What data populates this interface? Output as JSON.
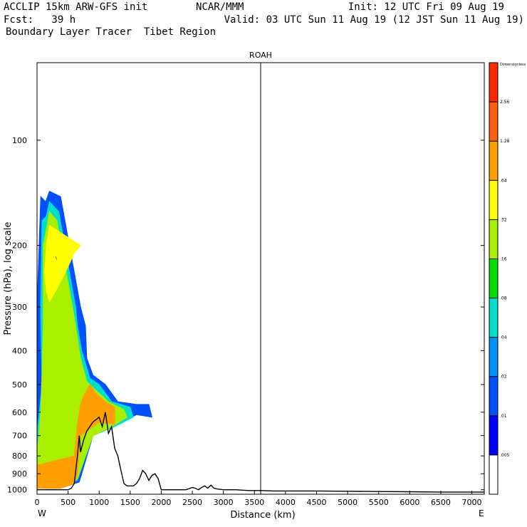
{
  "header": {
    "model": "ACCLIP 15km ARW-GFS init",
    "org": "NCAR/MMM",
    "init": "Init: 12 UTC Fri 09 Aug 19",
    "fcst": "Fcst:   39 h",
    "valid": "Valid: 03 UTC Sun 11 Aug 19 (12 JST Sun 11 Aug 19)",
    "product": "Boundary Layer Tracer  Tibet Region"
  },
  "chart_data": {
    "type": "heatmap",
    "title": "ROAH",
    "xlabel": "Distance (km)",
    "ylabel": "Pressure (hPa), log scale",
    "xlim": [
      0,
      7200
    ],
    "ylim": [
      1030,
      60
    ],
    "y_scale": "log",
    "x_ticks": [
      0,
      500,
      1000,
      1500,
      2000,
      2500,
      3000,
      3500,
      4000,
      4500,
      5000,
      5500,
      6000,
      6500,
      7000
    ],
    "x_tick_labels": [
      "0",
      "500",
      "1000",
      "1500",
      "2000",
      "2500",
      "3000",
      "3500",
      "4000",
      "4500",
      "5000",
      "5500",
      "6000",
      "6500",
      "7000"
    ],
    "y_ticks": [
      100,
      200,
      300,
      400,
      500,
      600,
      700,
      800,
      900,
      1000
    ],
    "y_tick_labels": [
      "100",
      "200",
      "300",
      "400",
      "500",
      "600",
      "700",
      "800",
      "900",
      "1000"
    ],
    "left_end_label": "W",
    "right_end_label": "E",
    "vertical_line_x": 3600,
    "colorbar": {
      "top_label": "Dimensionless",
      "levels": [
        ".005",
        ".01",
        ".02",
        ".04",
        ".08",
        ".16",
        ".32",
        ".64",
        "1.28",
        "2.56"
      ],
      "colors": [
        "#ffffff",
        "#0000ff",
        "#0050ff",
        "#0090ff",
        "#00e0c8",
        "#00dd00",
        "#aaee00",
        "#ffff00",
        "#ffa000",
        "#ff6010",
        "#ff2800"
      ]
    },
    "terrain_profile": {
      "x": [
        0,
        50,
        100,
        150,
        200,
        250,
        300,
        350,
        400,
        450,
        500,
        550,
        600,
        650,
        680,
        700,
        750,
        800,
        850,
        900,
        950,
        1000,
        1050,
        1100,
        1150,
        1200,
        1250,
        1300,
        1350,
        1400,
        1450,
        1500,
        1550,
        1600,
        1650,
        1700,
        1750,
        1800,
        1850,
        1900,
        1950,
        2000,
        2100,
        2200,
        2300,
        2400,
        2500,
        2550,
        2600,
        2650,
        2700,
        2750,
        2800,
        2850,
        2900,
        3000,
        3200,
        3400,
        3600,
        3800,
        4000,
        4500,
        5000,
        5500,
        6000,
        6500,
        7000,
        7200
      ],
      "p": [
        1000,
        1000,
        1000,
        1000,
        1000,
        1000,
        1000,
        1000,
        1000,
        1000,
        1000,
        990,
        960,
        800,
        700,
        780,
        720,
        680,
        660,
        640,
        630,
        620,
        660,
        600,
        690,
        660,
        760,
        800,
        880,
        960,
        975,
        975,
        975,
        960,
        930,
        880,
        900,
        940,
        910,
        900,
        930,
        1000,
        1000,
        1000,
        1000,
        1000,
        985,
        990,
        1000,
        985,
        975,
        990,
        970,
        990,
        995,
        1000,
        1000,
        1005,
        1005,
        1008,
        1008,
        1008,
        1010,
        1012,
        1013,
        1015,
        1015,
        1015
      ]
    },
    "tracer_regions": [
      {
        "level": ".01",
        "x": [
          380,
          200,
          140,
          60,
          0,
          0,
          0,
          380,
          680,
          900,
          1300,
          1600,
          1850,
          1800,
          1600,
          1300,
          1100,
          900,
          800,
          780,
          700
        ],
        "p": [
          145,
          140,
          150,
          145,
          300,
          600,
          990,
          990,
          950,
          700,
          650,
          610,
          620,
          570,
          570,
          560,
          500,
          470,
          420,
          340,
          300
        ]
      },
      {
        "level": ".04",
        "x": [
          350,
          200,
          150,
          80,
          60,
          80,
          0,
          0,
          380,
          650,
          900,
          1250,
          1550,
          1500,
          1200,
          1000,
          850,
          720,
          650,
          620
        ],
        "p": [
          160,
          150,
          165,
          170,
          300,
          500,
          700,
          990,
          990,
          940,
          700,
          660,
          620,
          580,
          560,
          500,
          480,
          400,
          340,
          300
        ]
      },
      {
        "level": ".16",
        "x": [
          320,
          200,
          150,
          100,
          100,
          60,
          0,
          0,
          380,
          650,
          900,
          1200,
          1450,
          1400,
          1150,
          950,
          800,
          700,
          600
        ],
        "p": [
          170,
          160,
          180,
          200,
          350,
          600,
          800,
          990,
          990,
          930,
          700,
          660,
          620,
          590,
          560,
          520,
          490,
          420,
          320
        ]
      },
      {
        "level": ".32",
        "x": [
          300,
          200,
          150,
          120,
          150,
          200,
          300,
          400,
          500,
          600,
          700
        ],
        "p": [
          180,
          175,
          200,
          240,
          270,
          290,
          270,
          250,
          230,
          210,
          200
        ]
      },
      {
        "level": ".64",
        "x": [
          0,
          0,
          380,
          600,
          650,
          700,
          800,
          1000,
          1250,
          1250,
          1100,
          950,
          850,
          750,
          700,
          650,
          600
        ],
        "p": [
          850,
          990,
          990,
          960,
          900,
          700,
          680,
          640,
          650,
          580,
          560,
          530,
          500,
          540,
          570,
          650,
          800
        ]
      },
      {
        "level": "1.28",
        "x": [
          300,
          310,
          320
        ],
        "p": [
          215,
          218,
          220
        ]
      }
    ]
  }
}
